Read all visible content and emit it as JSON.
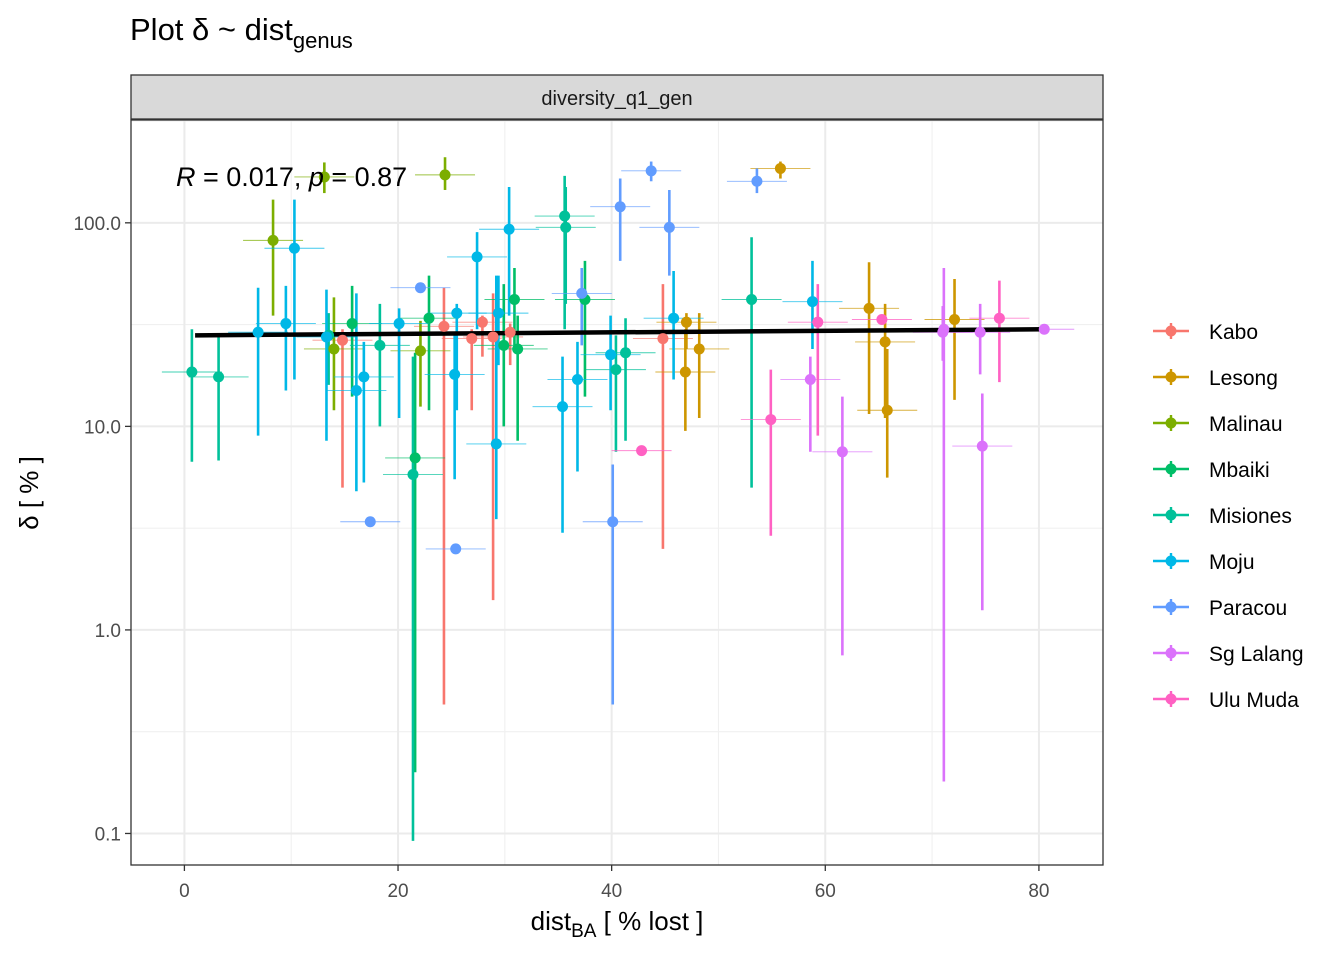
{
  "chart_data": {
    "type": "scatter",
    "title": "Plot δ ~ dist",
    "title_sub": "genus",
    "facet": "diversity_q1_gen",
    "xlabel_main": "dist",
    "xlabel_sub": "BA",
    "xlabel_rest": " [ % lost ]",
    "ylabel": "δ [ % ]",
    "xlim": [
      -5,
      86
    ],
    "ylim_log": [
      0.07,
      320
    ],
    "y_scale": "log10",
    "x_ticks": [
      0,
      20,
      40,
      60,
      80
    ],
    "x_tick_labels": [
      "0",
      "20",
      "40",
      "60",
      "80"
    ],
    "y_ticks": [
      0.1,
      1,
      10,
      100
    ],
    "y_tick_labels": [
      "0.1",
      "1.0",
      "10.0",
      "100.0"
    ],
    "grid": true,
    "legend_position": "right",
    "annotation": {
      "R_label": "R",
      "R_value": " = 0.017, ",
      "p_label": "p",
      "p_value": " = 0.87"
    },
    "trend_line": {
      "x": [
        1,
        80.5
      ],
      "y": [
        28,
        30
      ]
    },
    "series": [
      {
        "name": "Kabo",
        "color": "#F8766D",
        "points": [
          {
            "x": 14.8,
            "y": 26.5,
            "ylo": 5,
            "yhi": 30
          },
          {
            "x": 24.3,
            "y": 31,
            "ylo": 0.43,
            "yhi": 48
          },
          {
            "x": 26.9,
            "y": 27,
            "ylo": 12,
            "yhi": 30
          },
          {
            "x": 27.9,
            "y": 32.5,
            "ylo": 22,
            "yhi": 35
          },
          {
            "x": 28.9,
            "y": 27.5,
            "ylo": 1.4,
            "yhi": 45
          },
          {
            "x": 30.5,
            "y": 29,
            "ylo": 20,
            "yhi": 32
          },
          {
            "x": 44.8,
            "y": 27,
            "ylo": 2.5,
            "yhi": 50
          }
        ]
      },
      {
        "name": "Lesong",
        "color": "#CD9600",
        "points": [
          {
            "x": 55.8,
            "y": 185,
            "ylo": 165,
            "yhi": 200
          },
          {
            "x": 47.0,
            "y": 32.5,
            "ylo": 24,
            "yhi": 36
          },
          {
            "x": 46.9,
            "y": 18.5,
            "ylo": 9.5,
            "yhi": 30
          },
          {
            "x": 48.2,
            "y": 24,
            "ylo": 11,
            "yhi": 36
          },
          {
            "x": 64.1,
            "y": 38,
            "ylo": 11.5,
            "yhi": 64
          },
          {
            "x": 65.6,
            "y": 26,
            "ylo": 11,
            "yhi": 40
          },
          {
            "x": 65.8,
            "y": 12,
            "ylo": 5.6,
            "yhi": 24
          },
          {
            "x": 72.1,
            "y": 33.5,
            "ylo": 13.5,
            "yhi": 53
          }
        ]
      },
      {
        "name": "Malinau",
        "color": "#7CAE00",
        "points": [
          {
            "x": 13.1,
            "y": 168,
            "ylo": 140,
            "yhi": 198
          },
          {
            "x": 24.4,
            "y": 172,
            "ylo": 145,
            "yhi": 210
          },
          {
            "x": 8.3,
            "y": 82,
            "ylo": 35,
            "yhi": 130
          },
          {
            "x": 14.0,
            "y": 24,
            "ylo": 12,
            "yhi": 43
          },
          {
            "x": 22.1,
            "y": 23.5,
            "ylo": 12.5,
            "yhi": 33
          }
        ]
      },
      {
        "name": "Mbaiki",
        "color": "#00BE67",
        "points": [
          {
            "x": 15.7,
            "y": 32,
            "ylo": 14,
            "yhi": 49
          },
          {
            "x": 21.6,
            "y": 7,
            "ylo": 0.2,
            "yhi": 23
          },
          {
            "x": 22.9,
            "y": 34,
            "ylo": 12,
            "yhi": 55
          },
          {
            "x": 29.9,
            "y": 25,
            "ylo": 10,
            "yhi": 50
          },
          {
            "x": 30.9,
            "y": 42,
            "ylo": 25,
            "yhi": 60
          },
          {
            "x": 31.2,
            "y": 24,
            "ylo": 8.5,
            "yhi": 35
          },
          {
            "x": 37.5,
            "y": 42,
            "ylo": 14,
            "yhi": 65
          }
        ]
      },
      {
        "name": "Misiones",
        "color": "#00C19A",
        "points": [
          {
            "x": 0.7,
            "y": 18.5,
            "ylo": 6.7,
            "yhi": 30
          },
          {
            "x": 3.2,
            "y": 17.5,
            "ylo": 6.8,
            "yhi": 28
          },
          {
            "x": 18.3,
            "y": 25,
            "ylo": 10,
            "yhi": 40
          },
          {
            "x": 21.4,
            "y": 5.8,
            "ylo": 0.092,
            "yhi": 22
          },
          {
            "x": 35.6,
            "y": 108,
            "ylo": 30,
            "yhi": 170
          },
          {
            "x": 35.7,
            "y": 95,
            "ylo": 40,
            "yhi": 150
          },
          {
            "x": 40.4,
            "y": 19,
            "ylo": 7.5,
            "yhi": 28
          },
          {
            "x": 41.3,
            "y": 23,
            "ylo": 8.5,
            "yhi": 34
          },
          {
            "x": 53.1,
            "y": 42,
            "ylo": 5,
            "yhi": 85
          },
          {
            "x": 13.5,
            "y": 28,
            "ylo": 16,
            "yhi": 36
          }
        ]
      },
      {
        "name": "Moju",
        "color": "#00B8E7",
        "points": [
          {
            "x": 6.9,
            "y": 29,
            "ylo": 9,
            "yhi": 48
          },
          {
            "x": 9.5,
            "y": 32,
            "ylo": 15,
            "yhi": 49
          },
          {
            "x": 10.3,
            "y": 75,
            "ylo": 17,
            "yhi": 130
          },
          {
            "x": 13.3,
            "y": 27.5,
            "ylo": 8.5,
            "yhi": 47
          },
          {
            "x": 16.1,
            "y": 15,
            "ylo": 4.8,
            "yhi": 45
          },
          {
            "x": 16.8,
            "y": 17.5,
            "ylo": 5.3,
            "yhi": 26
          },
          {
            "x": 20.1,
            "y": 32,
            "ylo": 11,
            "yhi": 38
          },
          {
            "x": 25.3,
            "y": 18,
            "ylo": 5.5,
            "yhi": 28
          },
          {
            "x": 25.5,
            "y": 36,
            "ylo": 12,
            "yhi": 40
          },
          {
            "x": 27.4,
            "y": 68,
            "ylo": 30,
            "yhi": 90
          },
          {
            "x": 29.2,
            "y": 8.2,
            "ylo": 3.5,
            "yhi": 55
          },
          {
            "x": 29.4,
            "y": 36,
            "ylo": 20,
            "yhi": 55
          },
          {
            "x": 30.4,
            "y": 93,
            "ylo": 35,
            "yhi": 150
          },
          {
            "x": 35.4,
            "y": 12.5,
            "ylo": 3,
            "yhi": 22
          },
          {
            "x": 36.8,
            "y": 17,
            "ylo": 6,
            "yhi": 26
          },
          {
            "x": 39.9,
            "y": 22.5,
            "ylo": 12,
            "yhi": 35
          },
          {
            "x": 45.8,
            "y": 34,
            "ylo": 17,
            "yhi": 58
          },
          {
            "x": 58.8,
            "y": 41,
            "ylo": 24,
            "yhi": 65
          }
        ]
      },
      {
        "name": "Paracou",
        "color": "#619CFF",
        "points": [
          {
            "x": 43.7,
            "y": 180,
            "ylo": 160,
            "yhi": 200
          },
          {
            "x": 53.6,
            "y": 160,
            "ylo": 140,
            "yhi": 185
          },
          {
            "x": 40.8,
            "y": 120,
            "ylo": 65,
            "yhi": 165
          },
          {
            "x": 45.4,
            "y": 95,
            "ylo": 55,
            "yhi": 145
          },
          {
            "x": 17.4,
            "y": 3.4,
            "ylo": 3.4,
            "yhi": 3.4
          },
          {
            "x": 22.1,
            "y": 48,
            "ylo": 48,
            "yhi": 48
          },
          {
            "x": 25.4,
            "y": 2.5,
            "ylo": 2.5,
            "yhi": 2.5
          },
          {
            "x": 37.2,
            "y": 45,
            "ylo": 25,
            "yhi": 60
          },
          {
            "x": 40.1,
            "y": 3.4,
            "ylo": 0.43,
            "yhi": 6.5
          }
        ]
      },
      {
        "name": "Sg Lalang",
        "color": "#DB72FB",
        "points": [
          {
            "x": 58.6,
            "y": 17,
            "ylo": 7.5,
            "yhi": 22
          },
          {
            "x": 61.6,
            "y": 7.5,
            "ylo": 0.75,
            "yhi": 14
          },
          {
            "x": 71.0,
            "y": 29,
            "ylo": 21,
            "yhi": 39
          },
          {
            "x": 71.1,
            "y": 30,
            "ylo": 0.18,
            "yhi": 60
          },
          {
            "x": 74.5,
            "y": 29,
            "ylo": 18,
            "yhi": 40
          },
          {
            "x": 74.7,
            "y": 8,
            "ylo": 1.25,
            "yhi": 14.5
          },
          {
            "x": 80.5,
            "y": 30,
            "ylo": 30,
            "yhi": 30
          }
        ]
      },
      {
        "name": "Ulu Muda",
        "color": "#FF61C3",
        "points": [
          {
            "x": 42.8,
            "y": 7.6,
            "ylo": 7.6,
            "yhi": 7.6
          },
          {
            "x": 54.9,
            "y": 10.8,
            "ylo": 2.9,
            "yhi": 19
          },
          {
            "x": 59.3,
            "y": 32.5,
            "ylo": 9,
            "yhi": 50
          },
          {
            "x": 65.3,
            "y": 33.5,
            "ylo": 33.5,
            "yhi": 33.5
          },
          {
            "x": 76.3,
            "y": 34,
            "ylo": 16.5,
            "yhi": 52
          }
        ]
      }
    ]
  }
}
